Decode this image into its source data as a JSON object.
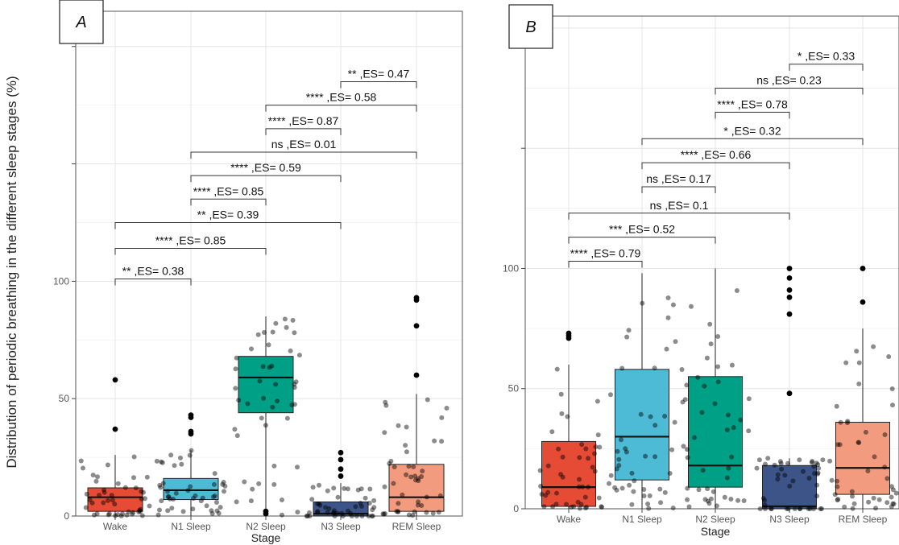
{
  "figure": {
    "ylabel": "Distribution of periodic breathing in the different sleep stages (%)",
    "xlabel": "Stage"
  },
  "chart_data": [
    {
      "type": "boxplot",
      "panel_label": "A",
      "xlabel": "Stage",
      "categories": [
        "Wake",
        "N1 Sleep",
        "N2 Sleep",
        "N3 Sleep",
        "REM Sleep"
      ],
      "colors": [
        "#E64B35",
        "#4DBBD5",
        "#00A087",
        "#3C5488",
        "#F39B7F"
      ],
      "yticks": [
        0,
        50,
        100
      ],
      "ylim": [
        0,
        215
      ],
      "grid": true,
      "boxes": [
        {
          "category": "Wake",
          "q1": 2,
          "median": 8,
          "q3": 12,
          "whisker_low": 0,
          "whisker_high": 26,
          "outliers": [
            37,
            58
          ]
        },
        {
          "category": "N1 Sleep",
          "q1": 7,
          "median": 11,
          "q3": 16,
          "whisker_low": 0,
          "whisker_high": 28,
          "outliers": [
            35,
            36,
            42,
            43
          ]
        },
        {
          "category": "N2 Sleep",
          "q1": 44,
          "median": 59,
          "q3": 68,
          "whisker_low": 0,
          "whisker_high": 85,
          "outliers": [
            1,
            2
          ]
        },
        {
          "category": "N3 Sleep",
          "q1": 0,
          "median": 1,
          "q3": 6,
          "whisker_low": 0,
          "whisker_high": 14,
          "outliers": [
            17,
            20,
            24,
            27
          ]
        },
        {
          "category": "REM Sleep",
          "q1": 2,
          "median": 8,
          "q3": 22,
          "whisker_low": 0,
          "whisker_high": 52,
          "outliers": [
            60,
            81,
            92,
            93
          ]
        }
      ],
      "comparisons": [
        {
          "from": "Wake",
          "to": "N1 Sleep",
          "label": "** ,ES= 0.38",
          "y": 101
        },
        {
          "from": "Wake",
          "to": "N2 Sleep",
          "label": "**** ,ES= 0.85",
          "y": 114
        },
        {
          "from": "Wake",
          "to": "N3 Sleep",
          "label": "** ,ES= 0.39",
          "y": 125
        },
        {
          "from": "N1 Sleep",
          "to": "N2 Sleep",
          "label": "**** ,ES= 0.85",
          "y": 135
        },
        {
          "from": "N1 Sleep",
          "to": "N3 Sleep",
          "label": "**** ,ES= 0.59",
          "y": 145
        },
        {
          "from": "N1 Sleep",
          "to": "REM Sleep",
          "label": "ns ,ES= 0.01",
          "y": 155
        },
        {
          "from": "N2 Sleep",
          "to": "N3 Sleep",
          "label": "**** ,ES= 0.87",
          "y": 165
        },
        {
          "from": "N2 Sleep",
          "to": "REM Sleep",
          "label": "**** ,ES= 0.58",
          "y": 175
        },
        {
          "from": "N3 Sleep",
          "to": "REM Sleep",
          "label": "** ,ES= 0.47",
          "y": 185
        }
      ]
    },
    {
      "type": "boxplot",
      "panel_label": "B",
      "xlabel": "Stage",
      "categories": [
        "Wake",
        "N1 Sleep",
        "N2 Sleep",
        "N3 Sleep",
        "REM Sleep"
      ],
      "colors": [
        "#E64B35",
        "#4DBBD5",
        "#00A087",
        "#3C5488",
        "#F39B7F"
      ],
      "yticks": [
        0,
        50,
        100
      ],
      "ylim": [
        0,
        205
      ],
      "grid": true,
      "boxes": [
        {
          "category": "Wake",
          "q1": 1,
          "median": 9,
          "q3": 28,
          "whisker_low": 0,
          "whisker_high": 60,
          "outliers": [
            71,
            72,
            73
          ]
        },
        {
          "category": "N1 Sleep",
          "q1": 12,
          "median": 30,
          "q3": 58,
          "whisker_low": 0,
          "whisker_high": 98,
          "outliers": []
        },
        {
          "category": "N2 Sleep",
          "q1": 9,
          "median": 18,
          "q3": 55,
          "whisker_low": 0,
          "whisker_high": 100,
          "outliers": []
        },
        {
          "category": "N3 Sleep",
          "q1": 0,
          "median": 1,
          "q3": 18,
          "whisker_low": 0,
          "whisker_high": 21,
          "outliers": [
            48,
            81,
            88,
            91,
            96,
            100
          ]
        },
        {
          "category": "REM Sleep",
          "q1": 6,
          "median": 17,
          "q3": 36,
          "whisker_low": 0,
          "whisker_high": 75,
          "outliers": [
            86,
            100
          ]
        }
      ],
      "comparisons": [
        {
          "from": "Wake",
          "to": "N1 Sleep",
          "label": "**** ,ES= 0.79",
          "y": 103
        },
        {
          "from": "Wake",
          "to": "N2 Sleep",
          "label": "*** ,ES= 0.52",
          "y": 113
        },
        {
          "from": "Wake",
          "to": "N3 Sleep",
          "label": "ns ,ES= 0.1",
          "y": 123
        },
        {
          "from": "N1 Sleep",
          "to": "N2 Sleep",
          "label": "ns ,ES= 0.17",
          "y": 134
        },
        {
          "from": "N1 Sleep",
          "to": "N3 Sleep",
          "label": "**** ,ES= 0.66",
          "y": 144
        },
        {
          "from": "N1 Sleep",
          "to": "REM Sleep",
          "label": "* ,ES= 0.32",
          "y": 154
        },
        {
          "from": "N2 Sleep",
          "to": "N3 Sleep",
          "label": "**** ,ES= 0.78",
          "y": 165
        },
        {
          "from": "N2 Sleep",
          "to": "REM Sleep",
          "label": "ns ,ES= 0.23",
          "y": 175
        },
        {
          "from": "N3 Sleep",
          "to": "REM Sleep",
          "label": "* ,ES= 0.33",
          "y": 185
        }
      ]
    }
  ]
}
